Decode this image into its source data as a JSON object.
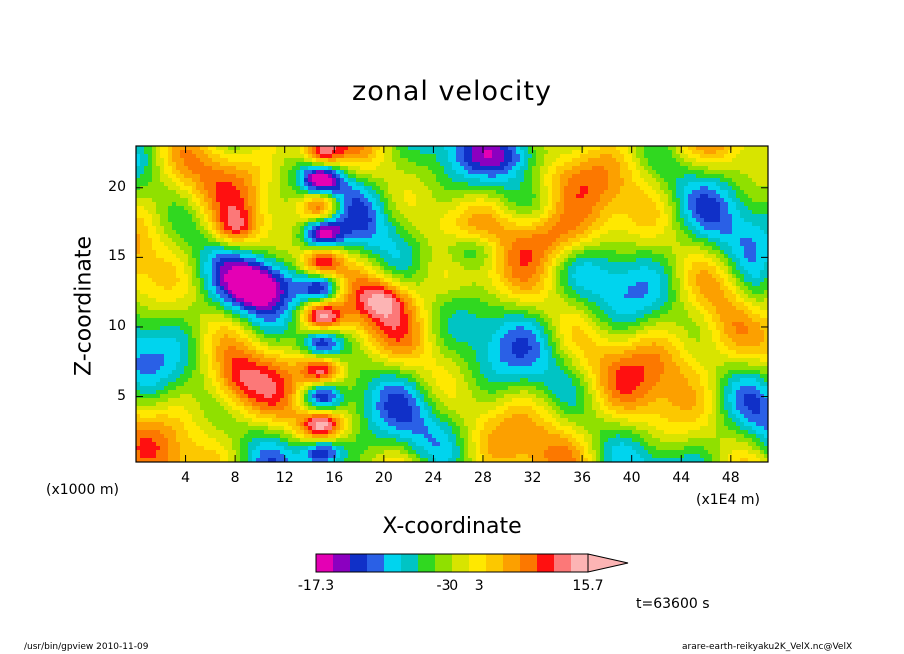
{
  "chart_data": {
    "type": "heatmap",
    "title": "zonal velocity",
    "xlabel": "X-coordinate",
    "ylabel": "Z-coordinate",
    "x_unit": "(x1E4 m)",
    "y_unit": "(x1000 m)",
    "xlim": [
      0,
      51
    ],
    "ylim": [
      0.3,
      23
    ],
    "x_ticks": [
      4,
      8,
      12,
      16,
      20,
      24,
      28,
      32,
      36,
      40,
      44,
      48
    ],
    "y_ticks": [
      5,
      10,
      15,
      20
    ],
    "colorbar": {
      "min": -17.3,
      "max": 15.7,
      "tick_labels": [
        "-17.3",
        "-3",
        "0",
        "3",
        "15.7"
      ],
      "colors": [
        "#e400b4",
        "#8b00c0",
        "#1030c8",
        "#2a60e6",
        "#00d4ee",
        "#00c4c4",
        "#30d820",
        "#90e000",
        "#d8e400",
        "#ffe800",
        "#fcc800",
        "#fca000",
        "#fc7800",
        "#ff1010",
        "#fc7878",
        "#fcb4b4"
      ]
    },
    "annotation": "t=63600 s"
  },
  "footer": {
    "left": "/usr/bin/gpview   2010-11-09",
    "right": "arare-earth-reikyaku2K_VelX.nc@VelX"
  }
}
